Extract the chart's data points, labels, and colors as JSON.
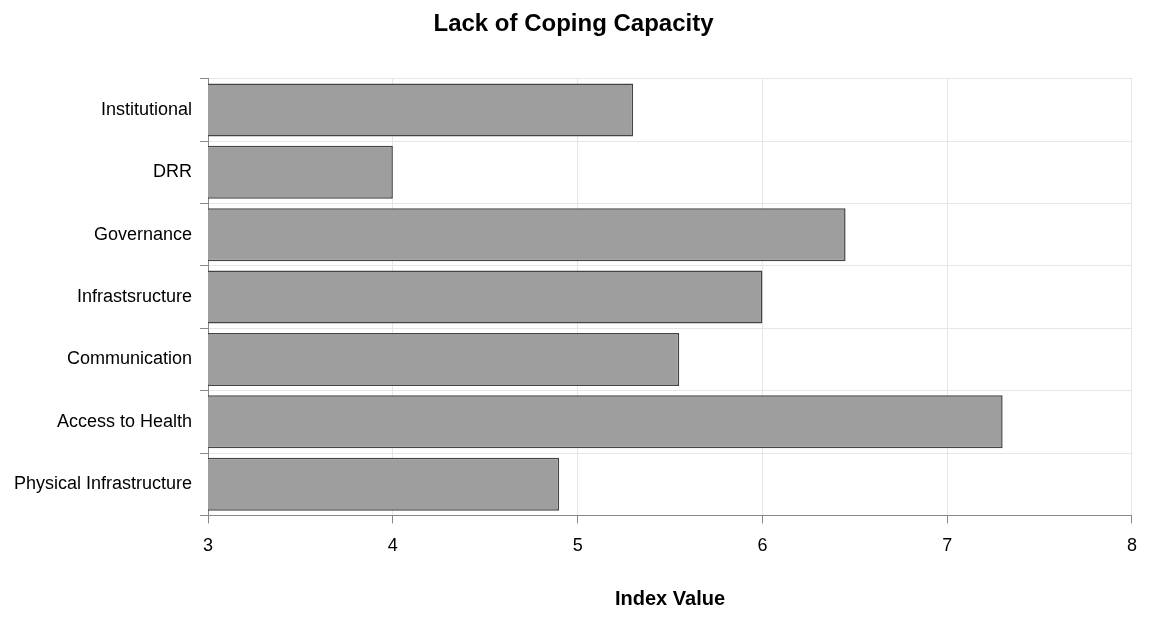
{
  "chart_data": {
    "type": "bar",
    "orientation": "horizontal",
    "title": "Lack of Coping Capacity",
    "xlabel": "Index Value",
    "categories": [
      "Institutional",
      "DRR",
      "Governance",
      "Infrastsructure",
      "Communication",
      "Access to Health",
      "Physical Infrastructure"
    ],
    "values": [
      5.3,
      4.0,
      6.45,
      6.0,
      5.55,
      7.3,
      4.9
    ],
    "color": "#9e9e9e",
    "xlim": [
      3,
      8
    ],
    "xticks": [
      3,
      4,
      5,
      6,
      7,
      8
    ],
    "grid": true,
    "legend": false
  }
}
